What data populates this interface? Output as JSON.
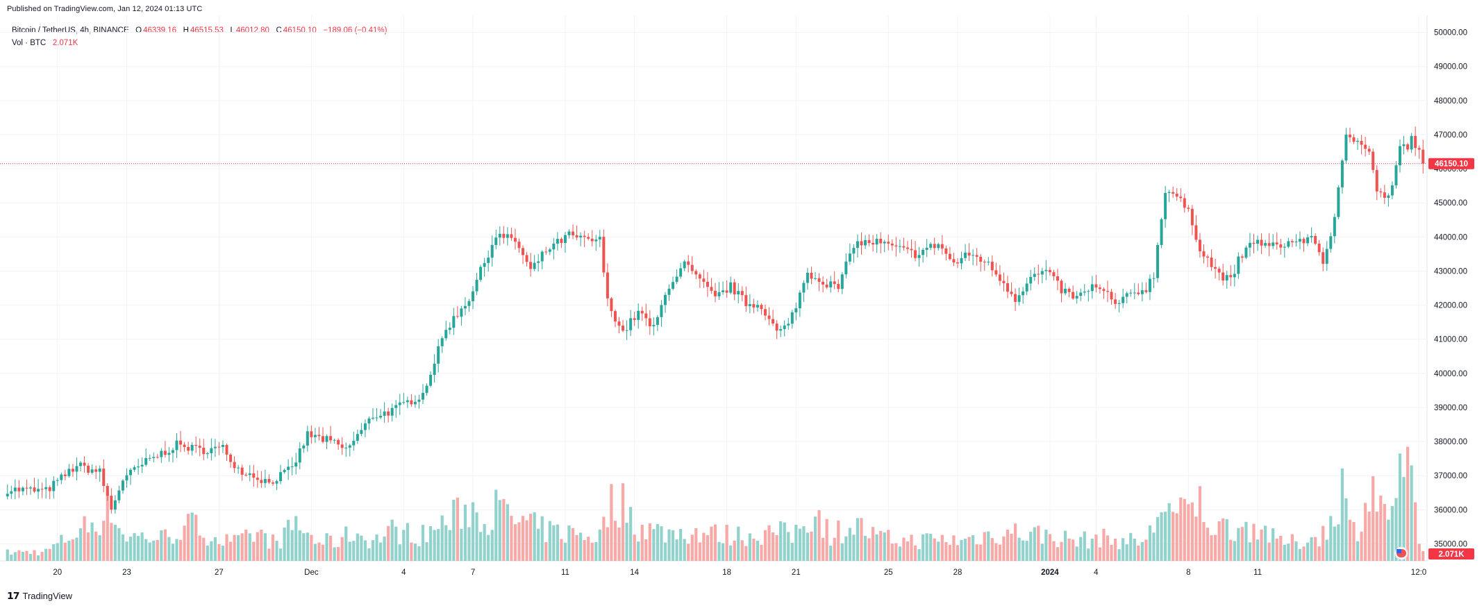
{
  "header": {
    "published": "Published on TradingView.com, Jan 12, 2024 01:13 UTC"
  },
  "legend": {
    "symbol": "Bitcoin / TetherUS, 4h, BINANCE",
    "open_label": "O",
    "open": "46339.16",
    "high_label": "H",
    "high": "46515.53",
    "low_label": "L",
    "low": "46012.80",
    "close_label": "C",
    "close": "46150.10",
    "change": "−189.06 (−0.41%)",
    "vol_label": "Vol · BTC",
    "vol_value": "2.071K"
  },
  "footer": {
    "brand": "TradingView"
  },
  "colors": {
    "up": "#26a69a",
    "down": "#ef5350",
    "vol_up": "#92d2cc",
    "vol_down": "#f7a9a7",
    "grid": "#f0f3fa",
    "last_price": "#f23645"
  },
  "chart_data": {
    "type": "candlestick",
    "interval": "4h",
    "ylim": [
      34500,
      50500
    ],
    "y_ticks": [
      "50000.00",
      "49000.00",
      "48000.00",
      "47000.00",
      "46000.00",
      "45000.00",
      "44000.00",
      "43000.00",
      "42000.00",
      "41000.00",
      "40000.00",
      "39000.00",
      "38000.00",
      "37000.00",
      "36000.00",
      "35000.00"
    ],
    "x_ticks": [
      "20",
      "23",
      "27",
      "Dec",
      "4",
      "7",
      "11",
      "14",
      "18",
      "21",
      "25",
      "28",
      "2024",
      "4",
      "8",
      "11",
      "12:0"
    ],
    "last_price": "46150.10",
    "last_volume": "2.071K",
    "close_path": [
      [
        0,
        36600
      ],
      [
        10,
        36550
      ],
      [
        18,
        37300
      ],
      [
        24,
        37100
      ],
      [
        27,
        36000
      ],
      [
        30,
        36900
      ],
      [
        36,
        37400
      ],
      [
        44,
        37900
      ],
      [
        50,
        37750
      ],
      [
        56,
        37800
      ],
      [
        60,
        37200
      ],
      [
        68,
        36800
      ],
      [
        74,
        37200
      ],
      [
        78,
        38200
      ],
      [
        84,
        38000
      ],
      [
        88,
        37750
      ],
      [
        95,
        38750
      ],
      [
        100,
        38900
      ],
      [
        108,
        39400
      ],
      [
        114,
        41300
      ],
      [
        120,
        42200
      ],
      [
        127,
        44050
      ],
      [
        132,
        43900
      ],
      [
        136,
        43000
      ],
      [
        140,
        43600
      ],
      [
        146,
        44050
      ],
      [
        150,
        43900
      ],
      [
        154,
        43900
      ],
      [
        156,
        42100
      ],
      [
        160,
        41200
      ],
      [
        164,
        41800
      ],
      [
        168,
        41300
      ],
      [
        172,
        42600
      ],
      [
        176,
        43200
      ],
      [
        180,
        42700
      ],
      [
        184,
        42200
      ],
      [
        188,
        42550
      ],
      [
        192,
        42050
      ],
      [
        196,
        42000
      ],
      [
        200,
        41200
      ],
      [
        203,
        41400
      ],
      [
        208,
        42950
      ],
      [
        212,
        42700
      ],
      [
        216,
        42500
      ],
      [
        220,
        43800
      ],
      [
        226,
        43850
      ],
      [
        230,
        43700
      ],
      [
        236,
        43500
      ],
      [
        242,
        43800
      ],
      [
        246,
        43200
      ],
      [
        250,
        43500
      ],
      [
        254,
        43300
      ],
      [
        258,
        42800
      ],
      [
        262,
        42200
      ],
      [
        266,
        42800
      ],
      [
        270,
        43000
      ],
      [
        274,
        42450
      ],
      [
        278,
        42200
      ],
      [
        282,
        42550
      ],
      [
        286,
        42300
      ],
      [
        288,
        42000
      ],
      [
        292,
        42300
      ],
      [
        296,
        42500
      ],
      [
        298,
        42900
      ],
      [
        301,
        45400
      ],
      [
        304,
        45200
      ],
      [
        307,
        44700
      ],
      [
        310,
        43700
      ],
      [
        314,
        43000
      ],
      [
        318,
        42700
      ],
      [
        320,
        43300
      ],
      [
        324,
        43900
      ],
      [
        328,
        43700
      ],
      [
        332,
        43800
      ],
      [
        336,
        43900
      ],
      [
        340,
        43900
      ],
      [
        342,
        43200
      ],
      [
        345,
        44600
      ],
      [
        348,
        46900
      ],
      [
        352,
        46800
      ],
      [
        354,
        46600
      ],
      [
        356,
        45400
      ],
      [
        358,
        45100
      ],
      [
        360,
        45500
      ],
      [
        362,
        46650
      ],
      [
        364,
        46600
      ],
      [
        365,
        46900
      ],
      [
        367,
        46450
      ],
      [
        368,
        46150
      ]
    ],
    "volume_path": [
      [
        0,
        290
      ],
      [
        10,
        330
      ],
      [
        18,
        1000
      ],
      [
        24,
        1500
      ],
      [
        27,
        1900
      ],
      [
        30,
        900
      ],
      [
        40,
        800
      ],
      [
        48,
        1250
      ],
      [
        56,
        700
      ],
      [
        60,
        650
      ],
      [
        65,
        950
      ],
      [
        70,
        600
      ],
      [
        75,
        1300
      ],
      [
        80,
        700
      ],
      [
        85,
        650
      ],
      [
        90,
        1000
      ],
      [
        95,
        700
      ],
      [
        100,
        1050
      ],
      [
        108,
        900
      ],
      [
        112,
        1200
      ],
      [
        116,
        1500
      ],
      [
        120,
        1900
      ],
      [
        124,
        1550
      ],
      [
        127,
        1800
      ],
      [
        132,
        1400
      ],
      [
        140,
        1050
      ],
      [
        148,
        950
      ],
      [
        154,
        850
      ],
      [
        156,
        1800
      ],
      [
        158,
        2100
      ],
      [
        160,
        2000
      ],
      [
        164,
        1200
      ],
      [
        170,
        1000
      ],
      [
        176,
        1000
      ],
      [
        180,
        1000
      ],
      [
        186,
        900
      ],
      [
        192,
        900
      ],
      [
        200,
        1000
      ],
      [
        204,
        900
      ],
      [
        210,
        1800
      ],
      [
        214,
        900
      ],
      [
        220,
        1300
      ],
      [
        226,
        800
      ],
      [
        234,
        700
      ],
      [
        242,
        750
      ],
      [
        248,
        700
      ],
      [
        254,
        900
      ],
      [
        262,
        1000
      ],
      [
        270,
        900
      ],
      [
        278,
        700
      ],
      [
        284,
        800
      ],
      [
        290,
        700
      ],
      [
        296,
        700
      ],
      [
        298,
        1200
      ],
      [
        300,
        2100
      ],
      [
        304,
        1500
      ],
      [
        310,
        2000
      ],
      [
        314,
        1100
      ],
      [
        318,
        1200
      ],
      [
        322,
        1150
      ],
      [
        326,
        1200
      ],
      [
        330,
        650
      ],
      [
        336,
        650
      ],
      [
        340,
        850
      ],
      [
        343,
        1000
      ],
      [
        345,
        1800
      ],
      [
        347,
        2700
      ],
      [
        349,
        1100
      ],
      [
        351,
        1250
      ],
      [
        353,
        2000
      ],
      [
        355,
        2600
      ],
      [
        358,
        1500
      ],
      [
        361,
        2400
      ],
      [
        363,
        3200
      ],
      [
        365,
        2400
      ],
      [
        367,
        500
      ],
      [
        368,
        300
      ]
    ]
  }
}
